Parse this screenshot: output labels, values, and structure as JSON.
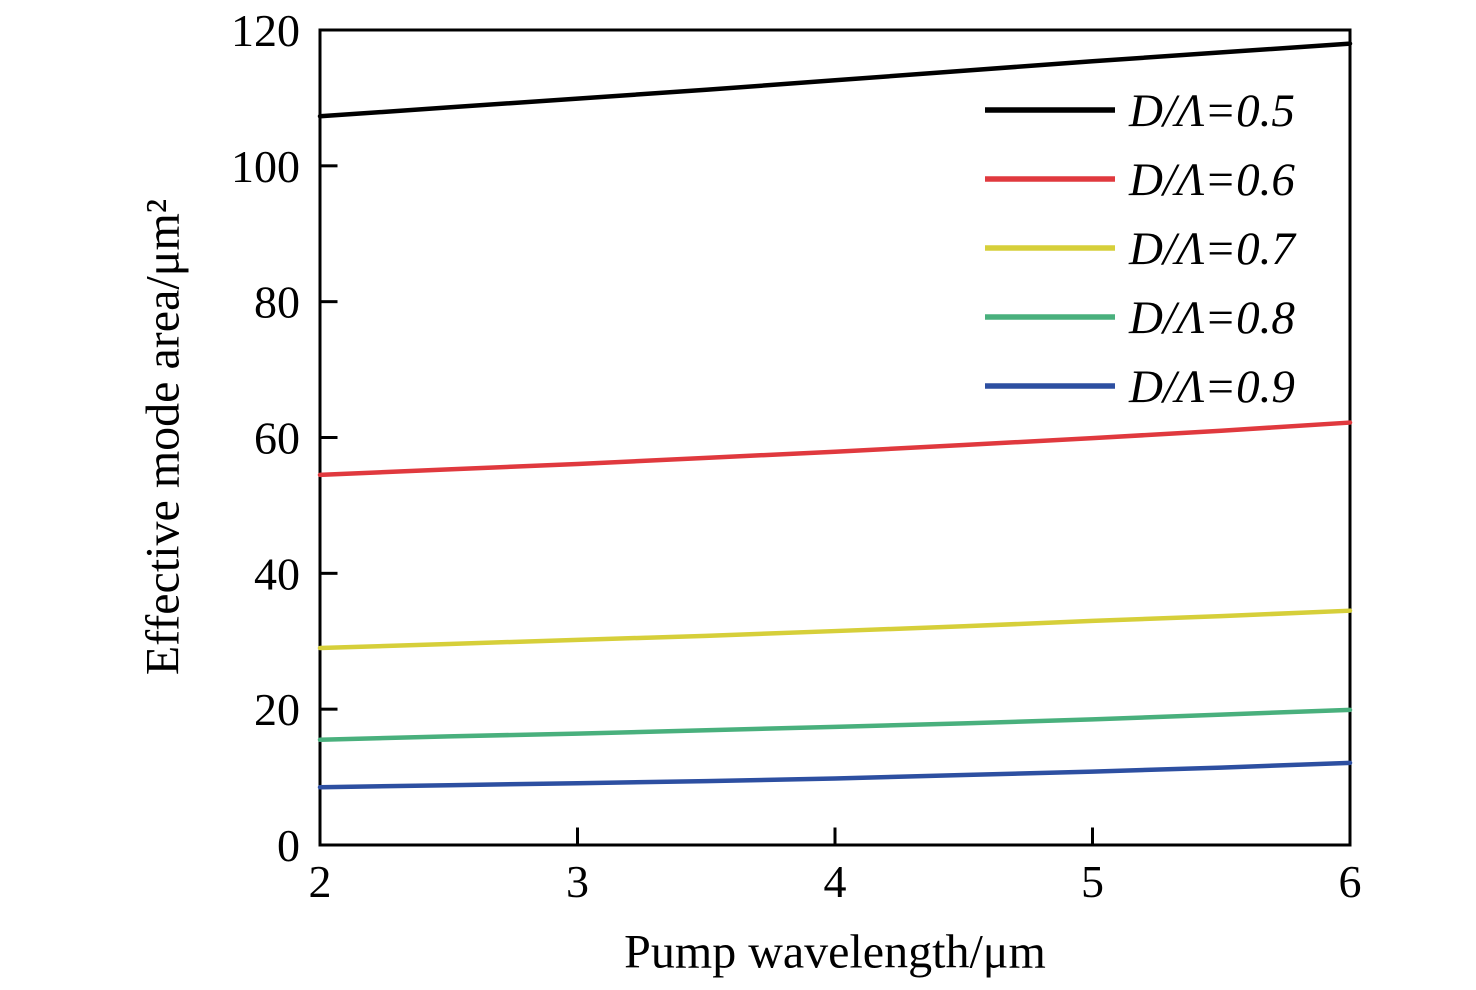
{
  "chart_data": {
    "type": "line",
    "title": "",
    "xlabel": "Pump wavelength/μm",
    "ylabel": "Effective mode area/μm²",
    "xlim": [
      2,
      6
    ],
    "ylim": [
      0,
      120
    ],
    "xticks": [
      2,
      3,
      4,
      5,
      6
    ],
    "yticks": [
      0,
      20,
      40,
      60,
      80,
      100,
      120
    ],
    "grid": false,
    "legend_position": "top-right-inside",
    "x": [
      2,
      2.5,
      3,
      3.5,
      4,
      4.5,
      5,
      5.5,
      6
    ],
    "series": [
      {
        "name": "D/Λ=0.5",
        "color": "#000000",
        "values": [
          107.3,
          108.6,
          109.9,
          111.2,
          112.6,
          114.0,
          115.4,
          116.7,
          118.0
        ]
      },
      {
        "name": "D/Λ=0.6",
        "color": "#e0393e",
        "values": [
          54.5,
          55.3,
          56.1,
          57.0,
          57.9,
          58.9,
          59.9,
          61.0,
          62.2
        ]
      },
      {
        "name": "D/Λ=0.7",
        "color": "#d6cf3a",
        "values": [
          29.0,
          29.6,
          30.2,
          30.8,
          31.5,
          32.2,
          33.0,
          33.7,
          34.5
        ]
      },
      {
        "name": "D/Λ=0.8",
        "color": "#49b07d",
        "values": [
          15.5,
          16.0,
          16.4,
          16.9,
          17.4,
          17.9,
          18.5,
          19.2,
          19.9
        ]
      },
      {
        "name": "D/Λ=0.9",
        "color": "#2d4fa1",
        "values": [
          8.5,
          8.8,
          9.1,
          9.4,
          9.8,
          10.3,
          10.8,
          11.4,
          12.1
        ]
      }
    ]
  }
}
